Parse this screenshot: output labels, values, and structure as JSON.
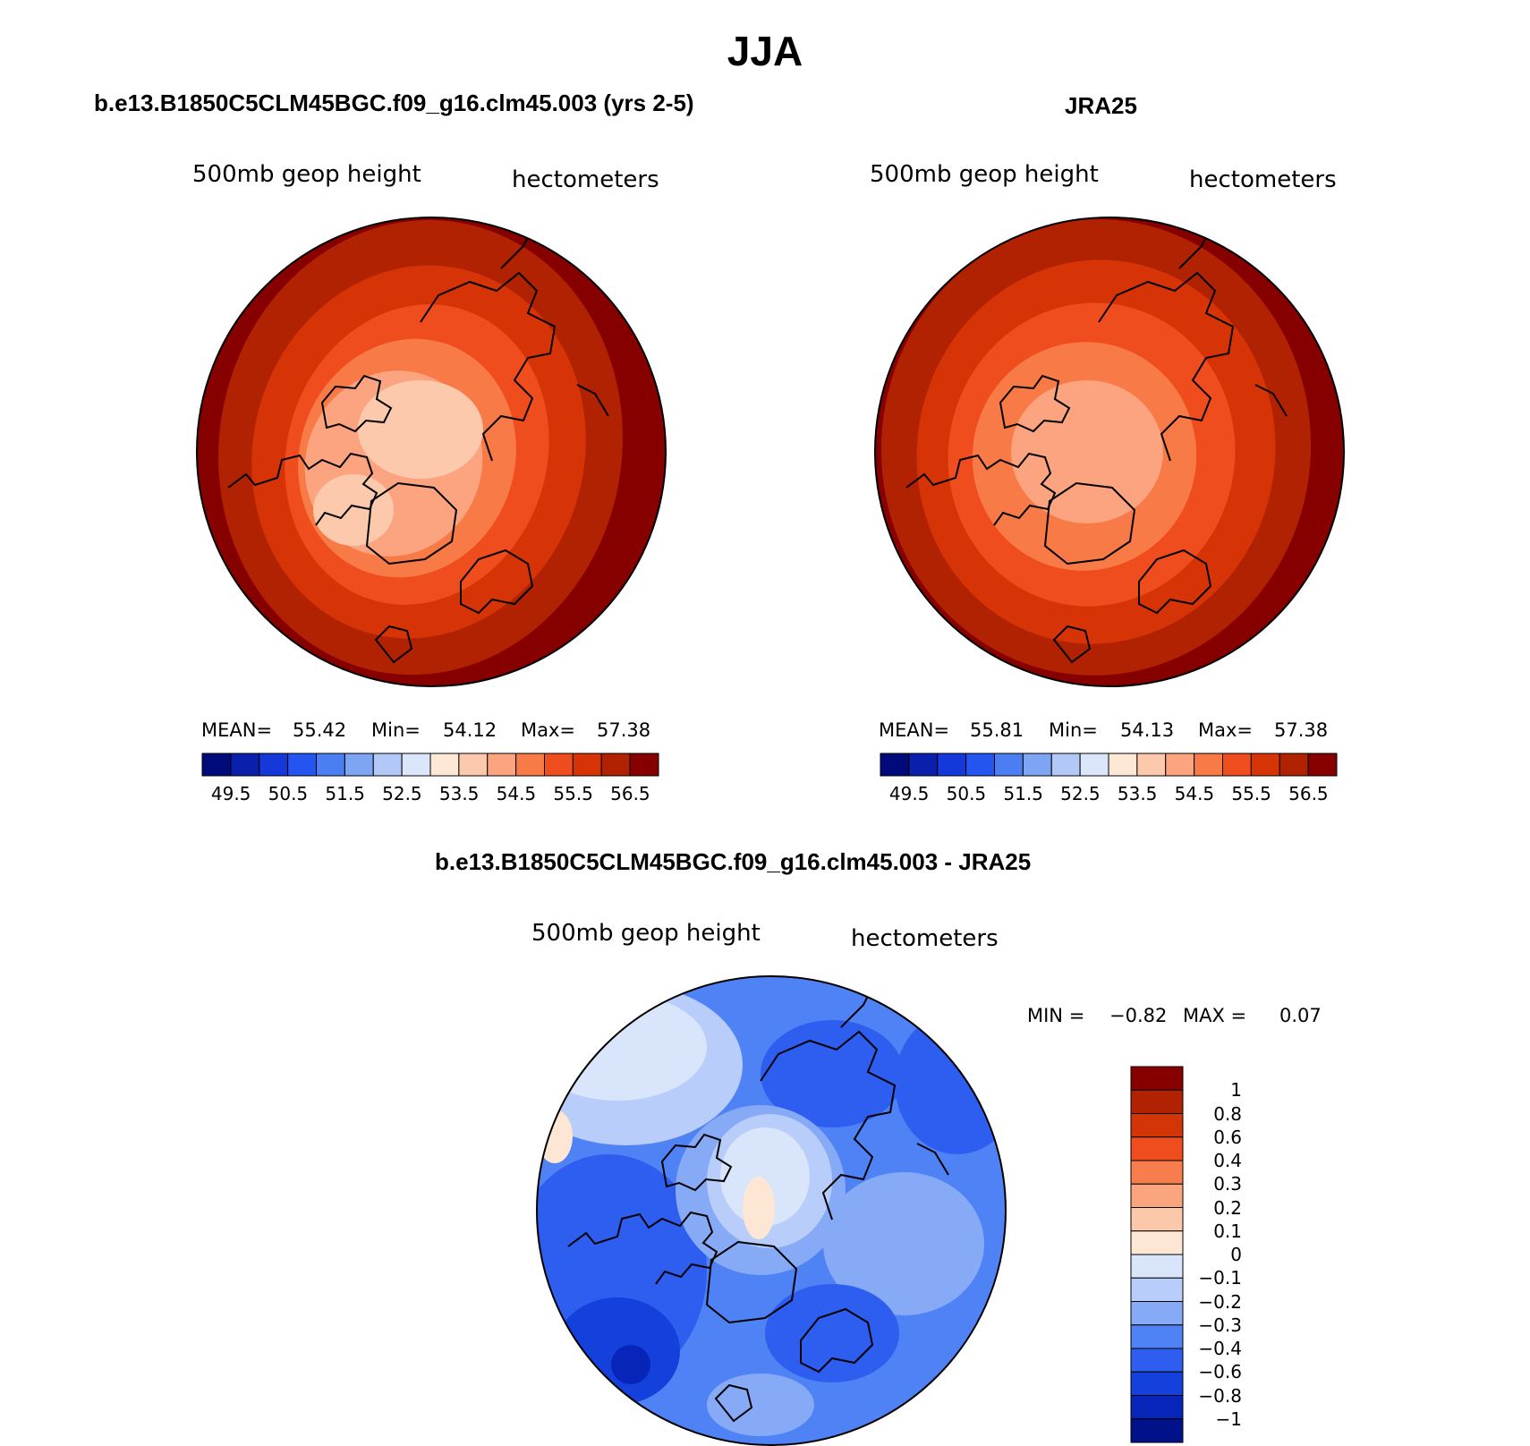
{
  "main_title": "JJA",
  "panels": [
    {
      "title": "b.e13.B1850C5CLM45BGC.f09_g16.clm45.003 (yrs 2-5)",
      "left_label": "500mb  geop  height",
      "right_label": "hectometers",
      "stats": {
        "mean_label": "MEAN=",
        "mean": "55.42",
        "min_label": "Min=",
        "min": "54.12",
        "max_label": "Max=",
        "max": "57.38"
      }
    },
    {
      "title": "JRA25",
      "left_label": "500mb  geop  height",
      "right_label": "hectometers",
      "stats": {
        "mean_label": "MEAN=",
        "mean": "55.81",
        "min_label": "Min=",
        "min": "54.13",
        "max_label": "Max=",
        "max": "57.38"
      }
    },
    {
      "title": "b.e13.B1850C5CLM45BGC.f09_g16.clm45.003 - JRA25",
      "left_label": "500mb  geop  height",
      "right_label": "hectometers",
      "stats": {
        "min_label": "MIN =",
        "min": "−0.82",
        "max_label": "MAX =",
        "max": "0.07"
      }
    }
  ],
  "colors": {
    "abs_scale": [
      "#000a7a",
      "#0a1fab",
      "#1438d9",
      "#2455f0",
      "#4a7ef2",
      "#7ea4f4",
      "#b2c9f8",
      "#dbe6fb",
      "#fde8d6",
      "#fdc9ac",
      "#fba47f",
      "#f87a47",
      "#f04d1e",
      "#d63407",
      "#b02202",
      "#870000"
    ],
    "diff_scale": [
      "#00118a",
      "#0725b8",
      "#1440dc",
      "#2d5ef0",
      "#4f82f5",
      "#86aaf6",
      "#b8cdf9",
      "#d8e5fb",
      "#fde7d4",
      "#fcc8ab",
      "#fba57f",
      "#f87d4c",
      "#f04d1e",
      "#d43507",
      "#b02202",
      "#870000"
    ]
  },
  "chart_data": [
    {
      "type": "heatmap",
      "title": "b.e13.B1850C5CLM45BGC.f09_g16.clm45.003 (yrs 2-5)",
      "field": "500mb geop height",
      "units": "hectometers",
      "projection": "polar stereographic (North Pole)",
      "mean": 55.42,
      "min": 54.12,
      "max": 57.38,
      "levels": [
        49.5,
        50,
        50.5,
        51,
        51.5,
        52,
        52.5,
        53,
        53.5,
        54,
        54.5,
        55,
        55.5,
        56,
        56.5
      ],
      "colorbar_ticks": [
        "49.5",
        "50.5",
        "51.5",
        "52.5",
        "53.5",
        "54.5",
        "55.5",
        "56.5"
      ],
      "contour_bands": [
        54.25,
        54.75,
        55.25,
        55.75,
        56.25,
        56.75
      ]
    },
    {
      "type": "heatmap",
      "title": "JRA25",
      "field": "500mb geop height",
      "units": "hectometers",
      "projection": "polar stereographic (North Pole)",
      "mean": 55.81,
      "min": 54.13,
      "max": 57.38,
      "levels": [
        49.5,
        50,
        50.5,
        51,
        51.5,
        52,
        52.5,
        53,
        53.5,
        54,
        54.5,
        55,
        55.5,
        56,
        56.5
      ],
      "colorbar_ticks": [
        "49.5",
        "50.5",
        "51.5",
        "52.5",
        "53.5",
        "54.5",
        "55.5",
        "56.5"
      ],
      "contour_bands": [
        54.25,
        54.75,
        55.25,
        55.75,
        56.25,
        56.75
      ]
    },
    {
      "type": "heatmap",
      "title": "b.e13.B1850C5CLM45BGC.f09_g16.clm45.003 - JRA25",
      "field": "500mb geop height",
      "units": "hectometers",
      "projection": "polar stereographic (North Pole)",
      "min": -0.82,
      "max": 0.07,
      "levels": [
        -1,
        -0.8,
        -0.6,
        -0.4,
        -0.3,
        -0.2,
        -0.1,
        0,
        0.1,
        0.2,
        0.3,
        0.4,
        0.6,
        0.8,
        1
      ],
      "colorbar_ticks": [
        "1",
        "0.8",
        "0.6",
        "0.4",
        "0.3",
        "0.2",
        "0.1",
        "0",
        "−0.1",
        "−0.2",
        "−0.3",
        "−0.4",
        "−0.6",
        "−0.8",
        "−1"
      ]
    }
  ]
}
